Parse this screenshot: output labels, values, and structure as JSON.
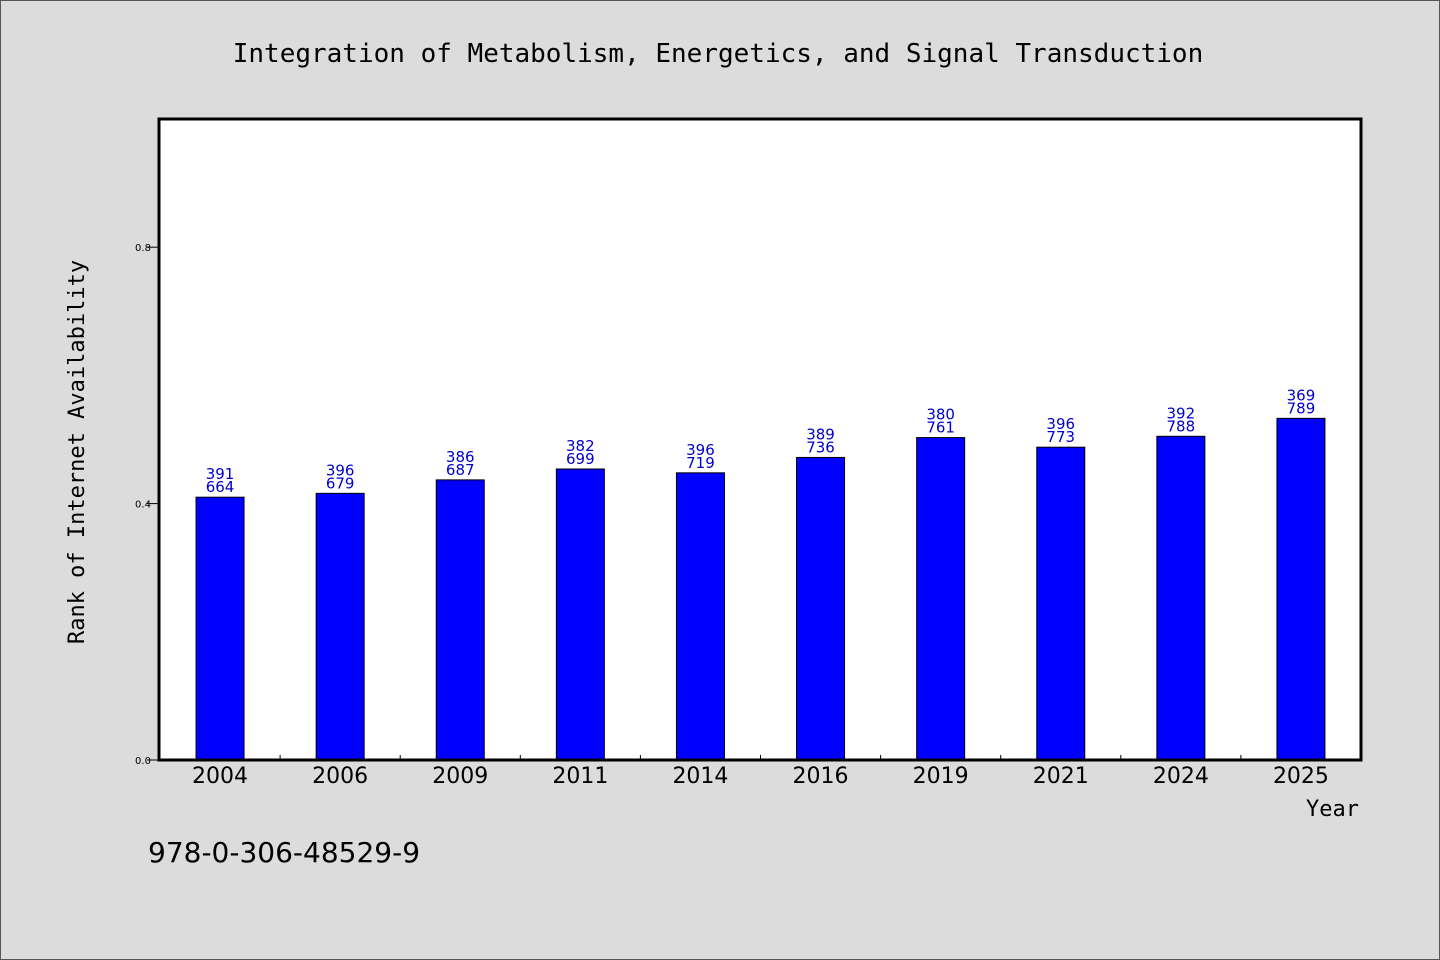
{
  "chart_data": {
    "type": "bar",
    "title": "Integration of Metabolism, Energetics, and Signal Transduction",
    "xlabel": "Year",
    "ylabel": "Rank of Internet Availability",
    "categories": [
      "2004",
      "2006",
      "2009",
      "2011",
      "2014",
      "2016",
      "2019",
      "2021",
      "2024",
      "2025"
    ],
    "values": [
      0.41,
      0.416,
      0.437,
      0.454,
      0.448,
      0.472,
      0.503,
      0.488,
      0.505,
      0.533
    ],
    "bar_labels": [
      [
        "391",
        "664"
      ],
      [
        "396",
        "679"
      ],
      [
        "386",
        "687"
      ],
      [
        "382",
        "699"
      ],
      [
        "396",
        "719"
      ],
      [
        "389",
        "736"
      ],
      [
        "380",
        "761"
      ],
      [
        "396",
        "773"
      ],
      [
        "392",
        "788"
      ],
      [
        "369",
        "789"
      ]
    ],
    "yticks": [
      0.0,
      0.4,
      0.8
    ],
    "ytick_labels": [
      "0.0",
      "0.4",
      "0.8"
    ],
    "ylim": [
      0,
      1.0
    ],
    "grid": false,
    "bar_color": "#0000ff",
    "bar_label_color": "#0000cc",
    "background": "#dcdcdc",
    "plot_background": "#ffffff"
  },
  "footer": {
    "isbn": "978-0-306-48529-9"
  }
}
